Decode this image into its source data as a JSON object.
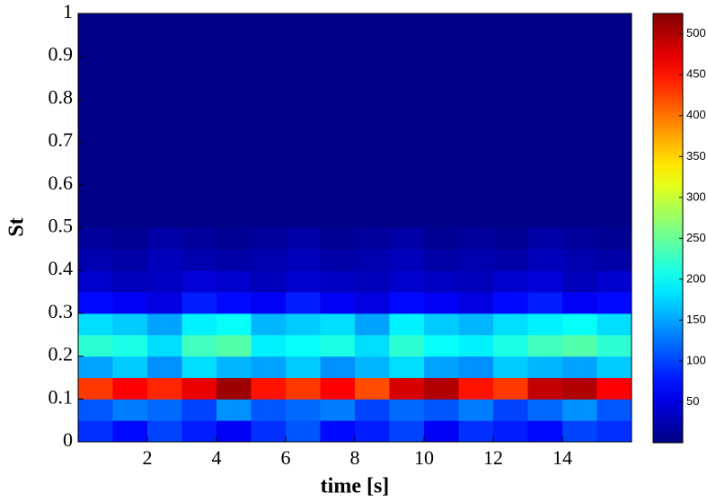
{
  "chart_data": {
    "type": "heatmap",
    "xlabel": "time [s]",
    "ylabel": "St",
    "xbins": [
      0,
      1,
      2,
      3,
      4,
      5,
      6,
      7,
      8,
      9,
      10,
      11,
      12,
      13,
      14,
      15,
      16
    ],
    "ybins": [
      0,
      0.05,
      0.1,
      0.15,
      0.2,
      0.25,
      0.3,
      0.35,
      0.4,
      0.45,
      0.5,
      1
    ],
    "z": [
      [
        90,
        70,
        100,
        80,
        60,
        90,
        110,
        70,
        80,
        100,
        60,
        90,
        80,
        70,
        100,
        90
      ],
      [
        110,
        130,
        120,
        100,
        140,
        110,
        120,
        130,
        100,
        120,
        110,
        130,
        100,
        120,
        140,
        110
      ],
      [
        430,
        460,
        440,
        470,
        510,
        450,
        430,
        460,
        420,
        480,
        500,
        450,
        430,
        490,
        500,
        460
      ],
      [
        150,
        170,
        140,
        180,
        160,
        150,
        170,
        140,
        160,
        180,
        150,
        140,
        170,
        160,
        150,
        170
      ],
      [
        220,
        210,
        180,
        230,
        240,
        190,
        200,
        210,
        180,
        220,
        200,
        190,
        210,
        230,
        240,
        220
      ],
      [
        180,
        170,
        150,
        190,
        200,
        160,
        170,
        180,
        150,
        190,
        170,
        160,
        180,
        190,
        200,
        180
      ],
      [
        70,
        60,
        50,
        80,
        70,
        60,
        80,
        60,
        50,
        70,
        60,
        50,
        70,
        80,
        60,
        70
      ],
      [
        40,
        30,
        35,
        45,
        40,
        30,
        40,
        35,
        30,
        40,
        35,
        30,
        40,
        45,
        30,
        40
      ],
      [
        25,
        20,
        30,
        25,
        20,
        25,
        30,
        20,
        25,
        30,
        20,
        25,
        20,
        30,
        25,
        20
      ],
      [
        15,
        10,
        20,
        15,
        10,
        15,
        20,
        10,
        15,
        20,
        10,
        15,
        10,
        20,
        15,
        10
      ],
      [
        5,
        5,
        5,
        5,
        5,
        5,
        5,
        5,
        5,
        5,
        5,
        5,
        5,
        5,
        5,
        5
      ]
    ],
    "xlim": [
      0,
      16
    ],
    "xticks": [
      2,
      4,
      6,
      8,
      10,
      12,
      14
    ],
    "ylim": [
      0,
      1
    ],
    "yticks": [
      0,
      0.1,
      0.2,
      0.3,
      0.4,
      0.5,
      0.6,
      0.7,
      0.8,
      0.9,
      1
    ],
    "clim": [
      0,
      525
    ],
    "cticks": [
      50,
      100,
      150,
      200,
      250,
      300,
      350,
      400,
      450,
      500
    ],
    "colormap": "jet"
  }
}
